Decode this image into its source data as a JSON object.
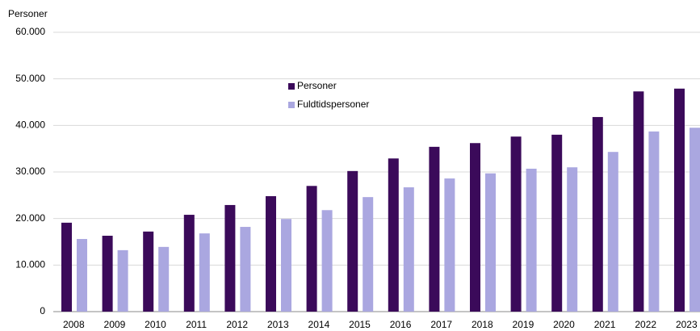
{
  "chart_data": {
    "type": "bar",
    "y_axis_label": "Personer",
    "categories": [
      "2008",
      "2009",
      "2010",
      "2011",
      "2012",
      "2013",
      "2014",
      "2015",
      "2016",
      "2017",
      "2018",
      "2019",
      "2020",
      "2021",
      "2022",
      "2023"
    ],
    "series": [
      {
        "name": "Personer",
        "color": "#3b0a5a",
        "values": [
          19100,
          16300,
          17200,
          20800,
          22900,
          24800,
          27000,
          30200,
          32900,
          35400,
          36200,
          37600,
          38000,
          41800,
          47300,
          47900
        ]
      },
      {
        "name": "Fuldtidspersoner",
        "color": "#aaa7e0",
        "values": [
          15600,
          13200,
          13900,
          16800,
          18200,
          19900,
          21800,
          24600,
          26700,
          28600,
          29700,
          30700,
          31000,
          34300,
          38700,
          39500
        ]
      }
    ],
    "ylim": [
      0,
      60000
    ],
    "yticks": [
      0,
      {
        "value": 10000,
        "label": "10.000"
      },
      {
        "value": 20000,
        "label": "20.000"
      },
      {
        "value": 30000,
        "label": "30.000"
      },
      {
        "value": 40000,
        "label": "40.000"
      },
      {
        "value": 50000,
        "label": "50.000"
      },
      {
        "value": 60000,
        "label": "60.000"
      }
    ],
    "grid": true
  }
}
